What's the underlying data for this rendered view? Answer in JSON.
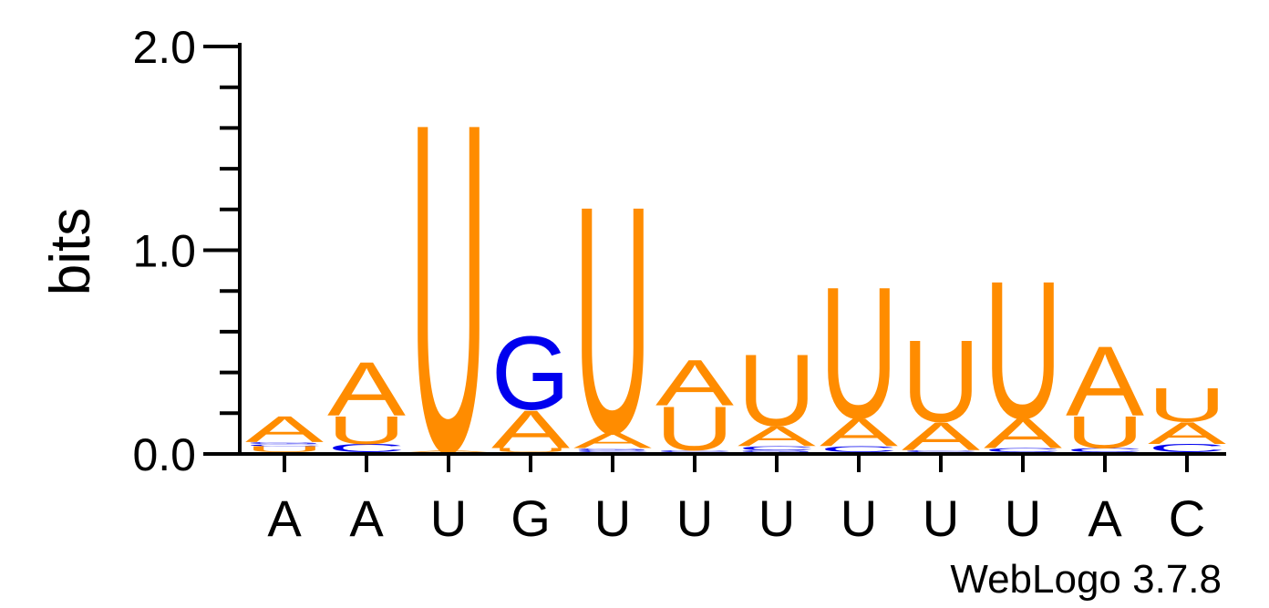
{
  "chart_data": {
    "type": "sequence-logo",
    "ylabel": "bits",
    "ylim": [
      0,
      2
    ],
    "yticks": [
      "0.0",
      "1.0",
      "2.0"
    ],
    "grid": false,
    "positions": [
      "A",
      "A",
      "U",
      "G",
      "U",
      "U",
      "U",
      "U",
      "U",
      "U",
      "A",
      "C"
    ],
    "colors": {
      "A": "#ff8c00",
      "U": "#ff8c00",
      "G": "#0000ee",
      "C": "#0000ee"
    },
    "stacks": [
      [
        {
          "base": "U",
          "bits": 0.03
        },
        {
          "base": "C",
          "bits": 0.01
        },
        {
          "base": "G",
          "bits": 0.01
        },
        {
          "base": "A",
          "bits": 0.13
        }
      ],
      [
        {
          "base": "C",
          "bits": 0.04
        },
        {
          "base": "U",
          "bits": 0.14
        },
        {
          "base": "A",
          "bits": 0.27
        }
      ],
      [
        {
          "base": "A",
          "bits": 0.01
        },
        {
          "base": "U",
          "bits": 1.65
        }
      ],
      [
        {
          "base": "U",
          "bits": 0.02
        },
        {
          "base": "A",
          "bits": 0.19
        },
        {
          "base": "G",
          "bits": 0.37
        }
      ],
      [
        {
          "base": "C",
          "bits": 0.01
        },
        {
          "base": "G",
          "bits": 0.01
        },
        {
          "base": "A",
          "bits": 0.08
        },
        {
          "base": "U",
          "bits": 1.14
        }
      ],
      [
        {
          "base": "C",
          "bits": 0.01
        },
        {
          "base": "U",
          "bits": 0.22
        },
        {
          "base": "A",
          "bits": 0.23
        }
      ],
      [
        {
          "base": "G",
          "bits": 0.01
        },
        {
          "base": "C",
          "bits": 0.02
        },
        {
          "base": "A",
          "bits": 0.1
        },
        {
          "base": "U",
          "bits": 0.36
        }
      ],
      [
        {
          "base": "C",
          "bits": 0.03
        },
        {
          "base": "A",
          "bits": 0.14
        },
        {
          "base": "U",
          "bits": 0.66
        }
      ],
      [
        {
          "base": "C",
          "bits": 0.01
        },
        {
          "base": "A",
          "bits": 0.14
        },
        {
          "base": "U",
          "bits": 0.41
        }
      ],
      [
        {
          "base": "C",
          "bits": 0.02
        },
        {
          "base": "A",
          "bits": 0.15
        },
        {
          "base": "U",
          "bits": 0.69
        }
      ],
      [
        {
          "base": "C",
          "bits": 0.02
        },
        {
          "base": "U",
          "bits": 0.16
        },
        {
          "base": "A",
          "bits": 0.35
        }
      ],
      [
        {
          "base": "C",
          "bits": 0.04
        },
        {
          "base": "A",
          "bits": 0.11
        },
        {
          "base": "U",
          "bits": 0.17
        }
      ]
    ],
    "credit": "WebLogo 3.7.8"
  }
}
